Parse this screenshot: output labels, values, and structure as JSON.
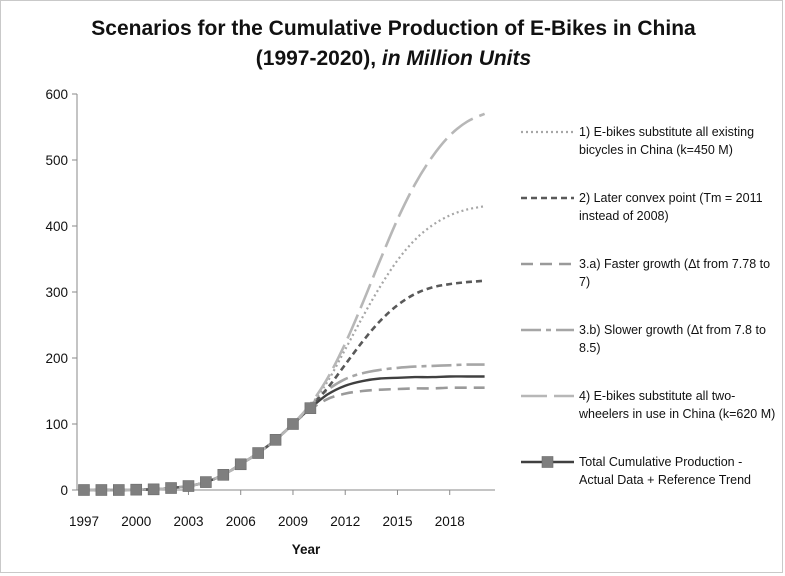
{
  "title_line1": "Scenarios for the Cumulative Production of E-Bikes in China",
  "title_line2_plain": "(1997-2020),",
  "title_line2_italic": "in Million Units",
  "chart_data": {
    "type": "line",
    "title": "Scenarios for the Cumulative Production of E-Bikes in China (1997-2020), in Million Units",
    "xlabel": "Year",
    "ylabel": "",
    "xlim": [
      1996.6,
      2020.6
    ],
    "ylim": [
      0,
      600
    ],
    "x_ticks": [
      1997,
      2000,
      2003,
      2006,
      2009,
      2012,
      2015,
      2018
    ],
    "y_ticks": [
      0,
      100,
      200,
      300,
      400,
      500,
      600
    ],
    "grid": false,
    "legend_position": "right",
    "x": [
      1997,
      1998,
      1999,
      2000,
      2001,
      2002,
      2003,
      2004,
      2005,
      2006,
      2007,
      2008,
      2009,
      2010,
      2011,
      2012,
      2013,
      2014,
      2015,
      2016,
      2017,
      2018,
      2019,
      2020
    ],
    "series": [
      {
        "name": "1) E-bikes substitute all existing bicycles in China (k=450 M)",
        "line_style": "dotted",
        "color": "#a6a6a6",
        "values": [
          0,
          0,
          0,
          0.5,
          1,
          3,
          6,
          12,
          23,
          39,
          56,
          76,
          100,
          128,
          165,
          213,
          262,
          308,
          348,
          379,
          401,
          416,
          425,
          430
        ]
      },
      {
        "name": "2) Later convex point (Tm = 2011 instead of 2008)",
        "line_style": "short-dash",
        "color": "#595959",
        "values": [
          0,
          0,
          0,
          0.5,
          1,
          3,
          6,
          12,
          23,
          39,
          56,
          76,
          100,
          126,
          155,
          190,
          225,
          256,
          280,
          297,
          307,
          312,
          315,
          317
        ]
      },
      {
        "name": "3.a) Faster growth (Δt from 7.78 to 7)",
        "line_style": "dash",
        "color": "#9a9a9a",
        "values": [
          0,
          0,
          0,
          0.5,
          1,
          3,
          6,
          12,
          23,
          39,
          56,
          76,
          100,
          122,
          138,
          146,
          150,
          152,
          153,
          154,
          154,
          155,
          155,
          155
        ]
      },
      {
        "name": "3.b) Slower growth (Δt from 7.8 to 8.5)",
        "line_style": "dash-dot",
        "color": "#a6a6a6",
        "values": [
          0,
          0,
          0,
          0.5,
          1,
          3,
          6,
          12,
          23,
          39,
          56,
          76,
          100,
          128,
          152,
          168,
          177,
          182,
          185,
          187,
          188,
          189,
          190,
          190
        ]
      },
      {
        "name": "4) E-bikes substitute all two-wheelers in use in China (k=620 M)",
        "line_style": "long-dash",
        "color": "#b7b7b7",
        "values": [
          0,
          0,
          0,
          0.5,
          1,
          3,
          6,
          12,
          23,
          39,
          56,
          76,
          100,
          130,
          170,
          222,
          283,
          348,
          410,
          463,
          505,
          537,
          558,
          570
        ]
      },
      {
        "name": "Total Cumulative Production - Actual Data + Reference Trend",
        "line_style": "solid-square-markers",
        "color": "#404040",
        "marker_color": "#7f7f7f",
        "marker_count": 14,
        "values": [
          0,
          0,
          0,
          0.5,
          1,
          3,
          6,
          12,
          23,
          39,
          56,
          76,
          100,
          124,
          145,
          158,
          165,
          169,
          170,
          171,
          171,
          172,
          172,
          172
        ]
      }
    ],
    "legend": [
      {
        "series": 0,
        "line1": "1) E-bikes substitute all existing",
        "line2": "bicycles in China (k=450 M)"
      },
      {
        "series": 1,
        "line1": "2) Later convex point (Tm = 2011",
        "line2": "instead of 2008)"
      },
      {
        "series": 2,
        "line1": "3.a) Faster growth (Δt from 7.78 to",
        "line2": "7)"
      },
      {
        "series": 3,
        "line1": "3.b) Slower growth (Δt from 7.8 to",
        "line2": "8.5)"
      },
      {
        "series": 4,
        "line1": "4) E-bikes substitute all two-",
        "line2": "wheelers in use in China (k=620 M)"
      },
      {
        "series": 5,
        "line1": "Total Cumulative Production -",
        "line2": "Actual Data + Reference Trend"
      }
    ]
  }
}
